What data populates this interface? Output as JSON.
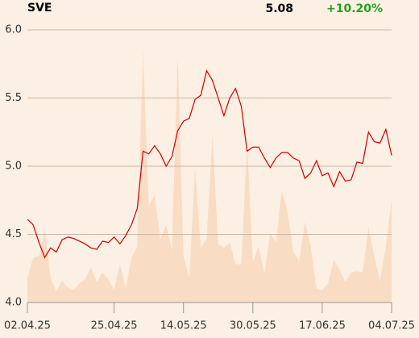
{
  "header": {
    "symbol": "SVE",
    "price": "5.08",
    "change": "+10.20%"
  },
  "chart_data": {
    "type": "line",
    "categories": [
      "02.04.25",
      null,
      null,
      null,
      null,
      null,
      null,
      null,
      null,
      null,
      null,
      null,
      null,
      null,
      null,
      "25.04.25",
      null,
      null,
      null,
      null,
      null,
      null,
      null,
      null,
      null,
      null,
      null,
      "14.05.25",
      null,
      null,
      null,
      null,
      null,
      null,
      null,
      null,
      null,
      null,
      null,
      "30.05.25",
      null,
      null,
      null,
      null,
      null,
      null,
      null,
      null,
      null,
      null,
      null,
      "17.06.25",
      null,
      null,
      null,
      null,
      null,
      null,
      null,
      null,
      null,
      null,
      null,
      "04.07.25"
    ],
    "series": [
      {
        "color": "#cc0000",
        "values": [
          4.61,
          4.57,
          4.44,
          4.33,
          4.4,
          4.37,
          4.46,
          4.48,
          4.47,
          4.45,
          4.43,
          4.4,
          4.39,
          4.45,
          4.44,
          4.48,
          4.43,
          4.49,
          4.57,
          4.69,
          5.11,
          5.09,
          5.15,
          5.09,
          5.0,
          5.07,
          5.26,
          5.33,
          5.35,
          5.49,
          5.52,
          5.7,
          5.63,
          5.5,
          5.37,
          5.5,
          5.57,
          5.44,
          5.11,
          5.14,
          5.14,
          5.06,
          4.99,
          5.06,
          5.1,
          5.1,
          5.06,
          5.04,
          4.91,
          4.95,
          5.04,
          4.93,
          4.95,
          4.85,
          4.96,
          4.89,
          4.9,
          5.03,
          5.02,
          5.25,
          5.18,
          5.17,
          5.27,
          5.08
        ]
      }
    ],
    "area": {
      "color": "#f9dcc4",
      "values": [
        4.18,
        4.33,
        4.34,
        4.53,
        4.18,
        4.08,
        4.16,
        4.11,
        4.09,
        4.14,
        4.17,
        4.26,
        4.15,
        4.22,
        4.17,
        4.09,
        4.28,
        4.1,
        4.33,
        4.41,
        5.85,
        4.71,
        4.79,
        4.46,
        4.57,
        4.38,
        5.8,
        4.34,
        4.18,
        4.98,
        4.4,
        4.47,
        5.22,
        4.43,
        4.4,
        4.44,
        4.28,
        4.28,
        5.15,
        4.3,
        4.41,
        4.21,
        4.51,
        4.44,
        4.82,
        4.67,
        4.37,
        4.3,
        4.59,
        4.41,
        4.1,
        4.09,
        4.14,
        4.31,
        4.24,
        4.15,
        4.22,
        4.23,
        4.22,
        4.55,
        4.34,
        4.15,
        4.41,
        4.75
      ]
    },
    "ylim": [
      4.0,
      6.0
    ],
    "yticks": [
      {
        "value": 4.0,
        "label": "4.0"
      },
      {
        "value": 4.5,
        "label": "4.5"
      },
      {
        "value": 5.0,
        "label": "5.0"
      },
      {
        "value": 5.5,
        "label": "5.5"
      },
      {
        "value": 6.0,
        "label": "6.0"
      }
    ],
    "grid": true
  }
}
